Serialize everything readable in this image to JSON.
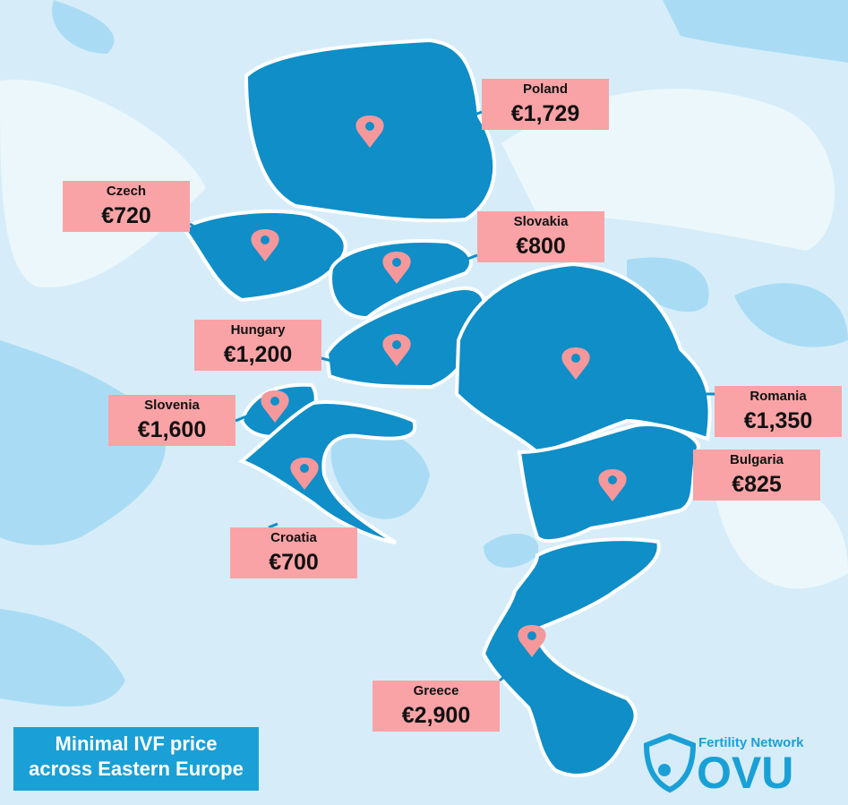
{
  "title": "Minimal IVF price across Eastern Europe",
  "logo": {
    "tagline": "Fertility Network",
    "name": "OVU"
  },
  "countries": [
    {
      "name": "Poland",
      "price": "€1,729"
    },
    {
      "name": "Czech",
      "price": "€720"
    },
    {
      "name": "Slovakia",
      "price": "€800"
    },
    {
      "name": "Hungary",
      "price": "€1,200"
    },
    {
      "name": "Slovenia",
      "price": "€1,600"
    },
    {
      "name": "Romania",
      "price": "€1,350"
    },
    {
      "name": "Bulgaria",
      "price": "€825"
    },
    {
      "name": "Croatia",
      "price": "€700"
    },
    {
      "name": "Greece",
      "price": "€2,900"
    }
  ]
}
